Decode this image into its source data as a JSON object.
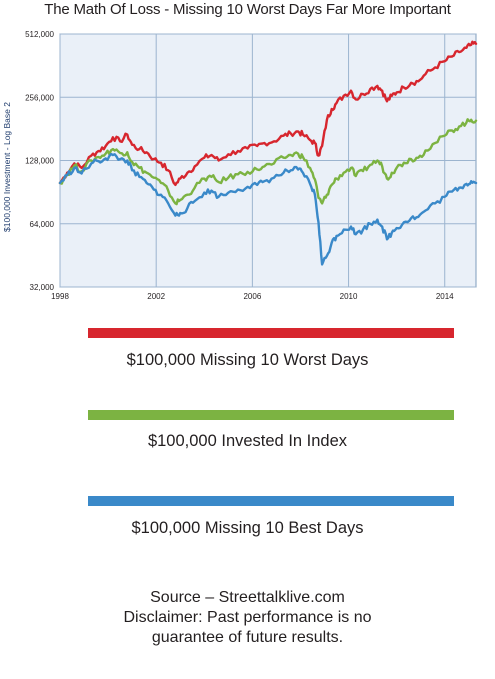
{
  "title": "The Math Of Loss - Missing 10 Worst Days Far More Important",
  "legend": [
    {
      "label": "$100,000 Missing 10 Worst  Days",
      "color": "#d7262e"
    },
    {
      "label": "$100,000 Invested In Index",
      "color": "#7cb342"
    },
    {
      "label": "$100,000 Missing 10 Best Days",
      "color": "#3a89c9"
    }
  ],
  "source": {
    "line1": "Source – Streettalklive.com",
    "line2": "Disclaimer: Past performance is no",
    "line3": "guarantee of future results."
  },
  "colors": {
    "plot_background": "#eaf0f8",
    "grid": "#9cb4cf",
    "plot_border": "#7f9cbd"
  },
  "chart_data": {
    "type": "line",
    "title": "The Math Of Loss - Missing 10 Worst Days Far More Important",
    "xlabel": "",
    "ylabel": "$100,000 Investment - Log Base 2",
    "y_scale": "log2",
    "ylim": [
      32000,
      512000
    ],
    "xlim": [
      1998,
      2015.3
    ],
    "xticks": [
      1998,
      2002,
      2006,
      2010,
      2014
    ],
    "yticks": [
      32000,
      64000,
      128000,
      256000,
      512000
    ],
    "ytick_labels": [
      "32,000",
      "64,000",
      "128,000",
      "256,000",
      "512,000"
    ],
    "grid": true,
    "legend_placement": "below",
    "series": [
      {
        "name": "$100,000 Missing 10 Worst  Days",
        "color": "#d7262e",
        "x": [
          1998.0,
          1998.3,
          1998.6,
          1998.9,
          1999.3,
          1999.6,
          1999.9,
          2000.2,
          2000.5,
          2000.8,
          2001.0,
          2001.3,
          2001.6,
          2001.9,
          2002.2,
          2002.5,
          2002.8,
          2003.0,
          2003.3,
          2003.6,
          2004.0,
          2004.3,
          2004.6,
          2005.0,
          2005.4,
          2005.8,
          2006.2,
          2006.5,
          2006.9,
          2007.3,
          2007.6,
          2007.9,
          2008.1,
          2008.4,
          2008.6,
          2008.75,
          2008.9,
          2009.1,
          2009.3,
          2009.5,
          2009.8,
          2010.1,
          2010.3,
          2010.6,
          2010.9,
          2011.2,
          2011.4,
          2011.6,
          2011.8,
          2012.0,
          2012.3,
          2012.6,
          2012.9,
          2013.2,
          2013.6,
          2014.0,
          2014.3,
          2014.6,
          2014.9,
          2015.1,
          2015.3
        ],
        "values": [
          100000,
          112000,
          124000,
          118000,
          135000,
          142000,
          150000,
          165000,
          158000,
          170000,
          152000,
          145000,
          140000,
          130000,
          125000,
          115000,
          98000,
          105000,
          112000,
          120000,
          132000,
          136000,
          128000,
          137000,
          142000,
          146000,
          150000,
          155000,
          158000,
          168000,
          172000,
          176000,
          170000,
          160000,
          155000,
          135000,
          150000,
          200000,
          225000,
          240000,
          260000,
          275000,
          250000,
          265000,
          280000,
          290000,
          275000,
          245000,
          260000,
          270000,
          285000,
          300000,
          305000,
          330000,
          355000,
          380000,
          400000,
          420000,
          440000,
          455000,
          460000
        ]
      },
      {
        "name": "$100,000 Invested In Index",
        "color": "#7cb342",
        "x": [
          1998.0,
          1998.3,
          1998.6,
          1998.9,
          1999.3,
          1999.6,
          1999.9,
          2000.2,
          2000.5,
          2000.8,
          2001.0,
          2001.3,
          2001.6,
          2001.9,
          2002.2,
          2002.5,
          2002.8,
          2003.0,
          2003.3,
          2003.6,
          2004.0,
          2004.3,
          2004.6,
          2005.0,
          2005.4,
          2005.8,
          2006.2,
          2006.5,
          2006.9,
          2007.3,
          2007.6,
          2007.9,
          2008.1,
          2008.4,
          2008.6,
          2008.75,
          2008.9,
          2009.1,
          2009.3,
          2009.5,
          2009.8,
          2010.1,
          2010.3,
          2010.6,
          2010.9,
          2011.2,
          2011.4,
          2011.6,
          2011.8,
          2012.0,
          2012.3,
          2012.6,
          2012.9,
          2013.2,
          2013.6,
          2014.0,
          2014.3,
          2014.6,
          2014.9,
          2015.1,
          2015.3
        ],
        "values": [
          100000,
          110000,
          121000,
          114000,
          128000,
          133000,
          138000,
          145000,
          139000,
          140000,
          126000,
          118000,
          112000,
          106000,
          100000,
          92000,
          80000,
          83000,
          88000,
          95000,
          105000,
          107000,
          101000,
          106000,
          110000,
          113000,
          116000,
          120000,
          124000,
          132000,
          136000,
          138000,
          133000,
          118000,
          104000,
          85000,
          80000,
          88000,
          98000,
          105000,
          112000,
          118000,
          108000,
          114000,
          122000,
          128000,
          120000,
          105000,
          112000,
          118000,
          125000,
          130000,
          132000,
          143000,
          155000,
          168000,
          178000,
          186000,
          194000,
          200000,
          198000
        ]
      },
      {
        "name": "$100,000 Missing 10 Best Days",
        "color": "#3a89c9",
        "x": [
          1998.0,
          1998.3,
          1998.6,
          1998.9,
          1999.3,
          1999.6,
          1999.9,
          2000.2,
          2000.5,
          2000.8,
          2001.0,
          2001.3,
          2001.6,
          2001.9,
          2002.2,
          2002.5,
          2002.8,
          2003.0,
          2003.3,
          2003.6,
          2004.0,
          2004.3,
          2004.6,
          2005.0,
          2005.4,
          2005.8,
          2006.2,
          2006.5,
          2006.9,
          2007.3,
          2007.6,
          2007.9,
          2008.1,
          2008.4,
          2008.6,
          2008.75,
          2008.9,
          2009.1,
          2009.3,
          2009.5,
          2009.8,
          2010.1,
          2010.3,
          2010.6,
          2010.9,
          2011.2,
          2011.4,
          2011.6,
          2011.8,
          2012.0,
          2012.3,
          2012.6,
          2012.9,
          2013.2,
          2013.6,
          2014.0,
          2014.3,
          2014.6,
          2014.9,
          2015.1,
          2015.3
        ],
        "values": [
          100000,
          109000,
          118000,
          111000,
          124000,
          127000,
          131000,
          136000,
          130000,
          128000,
          115000,
          107000,
          100000,
          93000,
          88000,
          80000,
          70000,
          72000,
          76000,
          82000,
          90000,
          92000,
          86000,
          90000,
          93000,
          96000,
          98000,
          102000,
          106000,
          112000,
          115000,
          116000,
          112000,
          99000,
          88000,
          65000,
          41000,
          45000,
          52000,
          56000,
          60000,
          62000,
          57000,
          60000,
          64000,
          67000,
          62000,
          54000,
          58000,
          61000,
          65000,
          68000,
          69000,
          74000,
          80000,
          86000,
          91000,
          95000,
          99000,
          102000,
          100000
        ]
      }
    ]
  }
}
